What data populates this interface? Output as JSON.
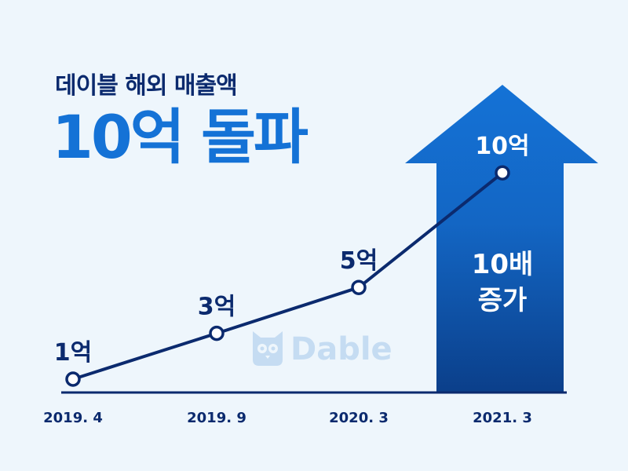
{
  "headline": {
    "line1": "데이블 해외 매출액",
    "line2": "10억 돌파"
  },
  "watermark": "Dable",
  "arrow_label": {
    "line1": "10배",
    "line2": "증가"
  },
  "colors": {
    "background": "#eef6fc",
    "line": "#0b2a6e",
    "headline_dark": "#0b2a6e",
    "headline_blue": "#1472d6",
    "arrow_top": "#1472d6",
    "arrow_bottom": "#0b3f8a",
    "watermark": "#c5dcf2"
  },
  "chart_data": {
    "type": "line",
    "categories": [
      "2019. 4",
      "2019. 9",
      "2020. 3",
      "2021. 3"
    ],
    "series": [
      {
        "values": [
          1,
          3,
          5,
          10
        ],
        "labels": [
          "1억",
          "3억",
          "5억",
          "10억"
        ]
      }
    ],
    "unit": "억",
    "grid": false
  }
}
